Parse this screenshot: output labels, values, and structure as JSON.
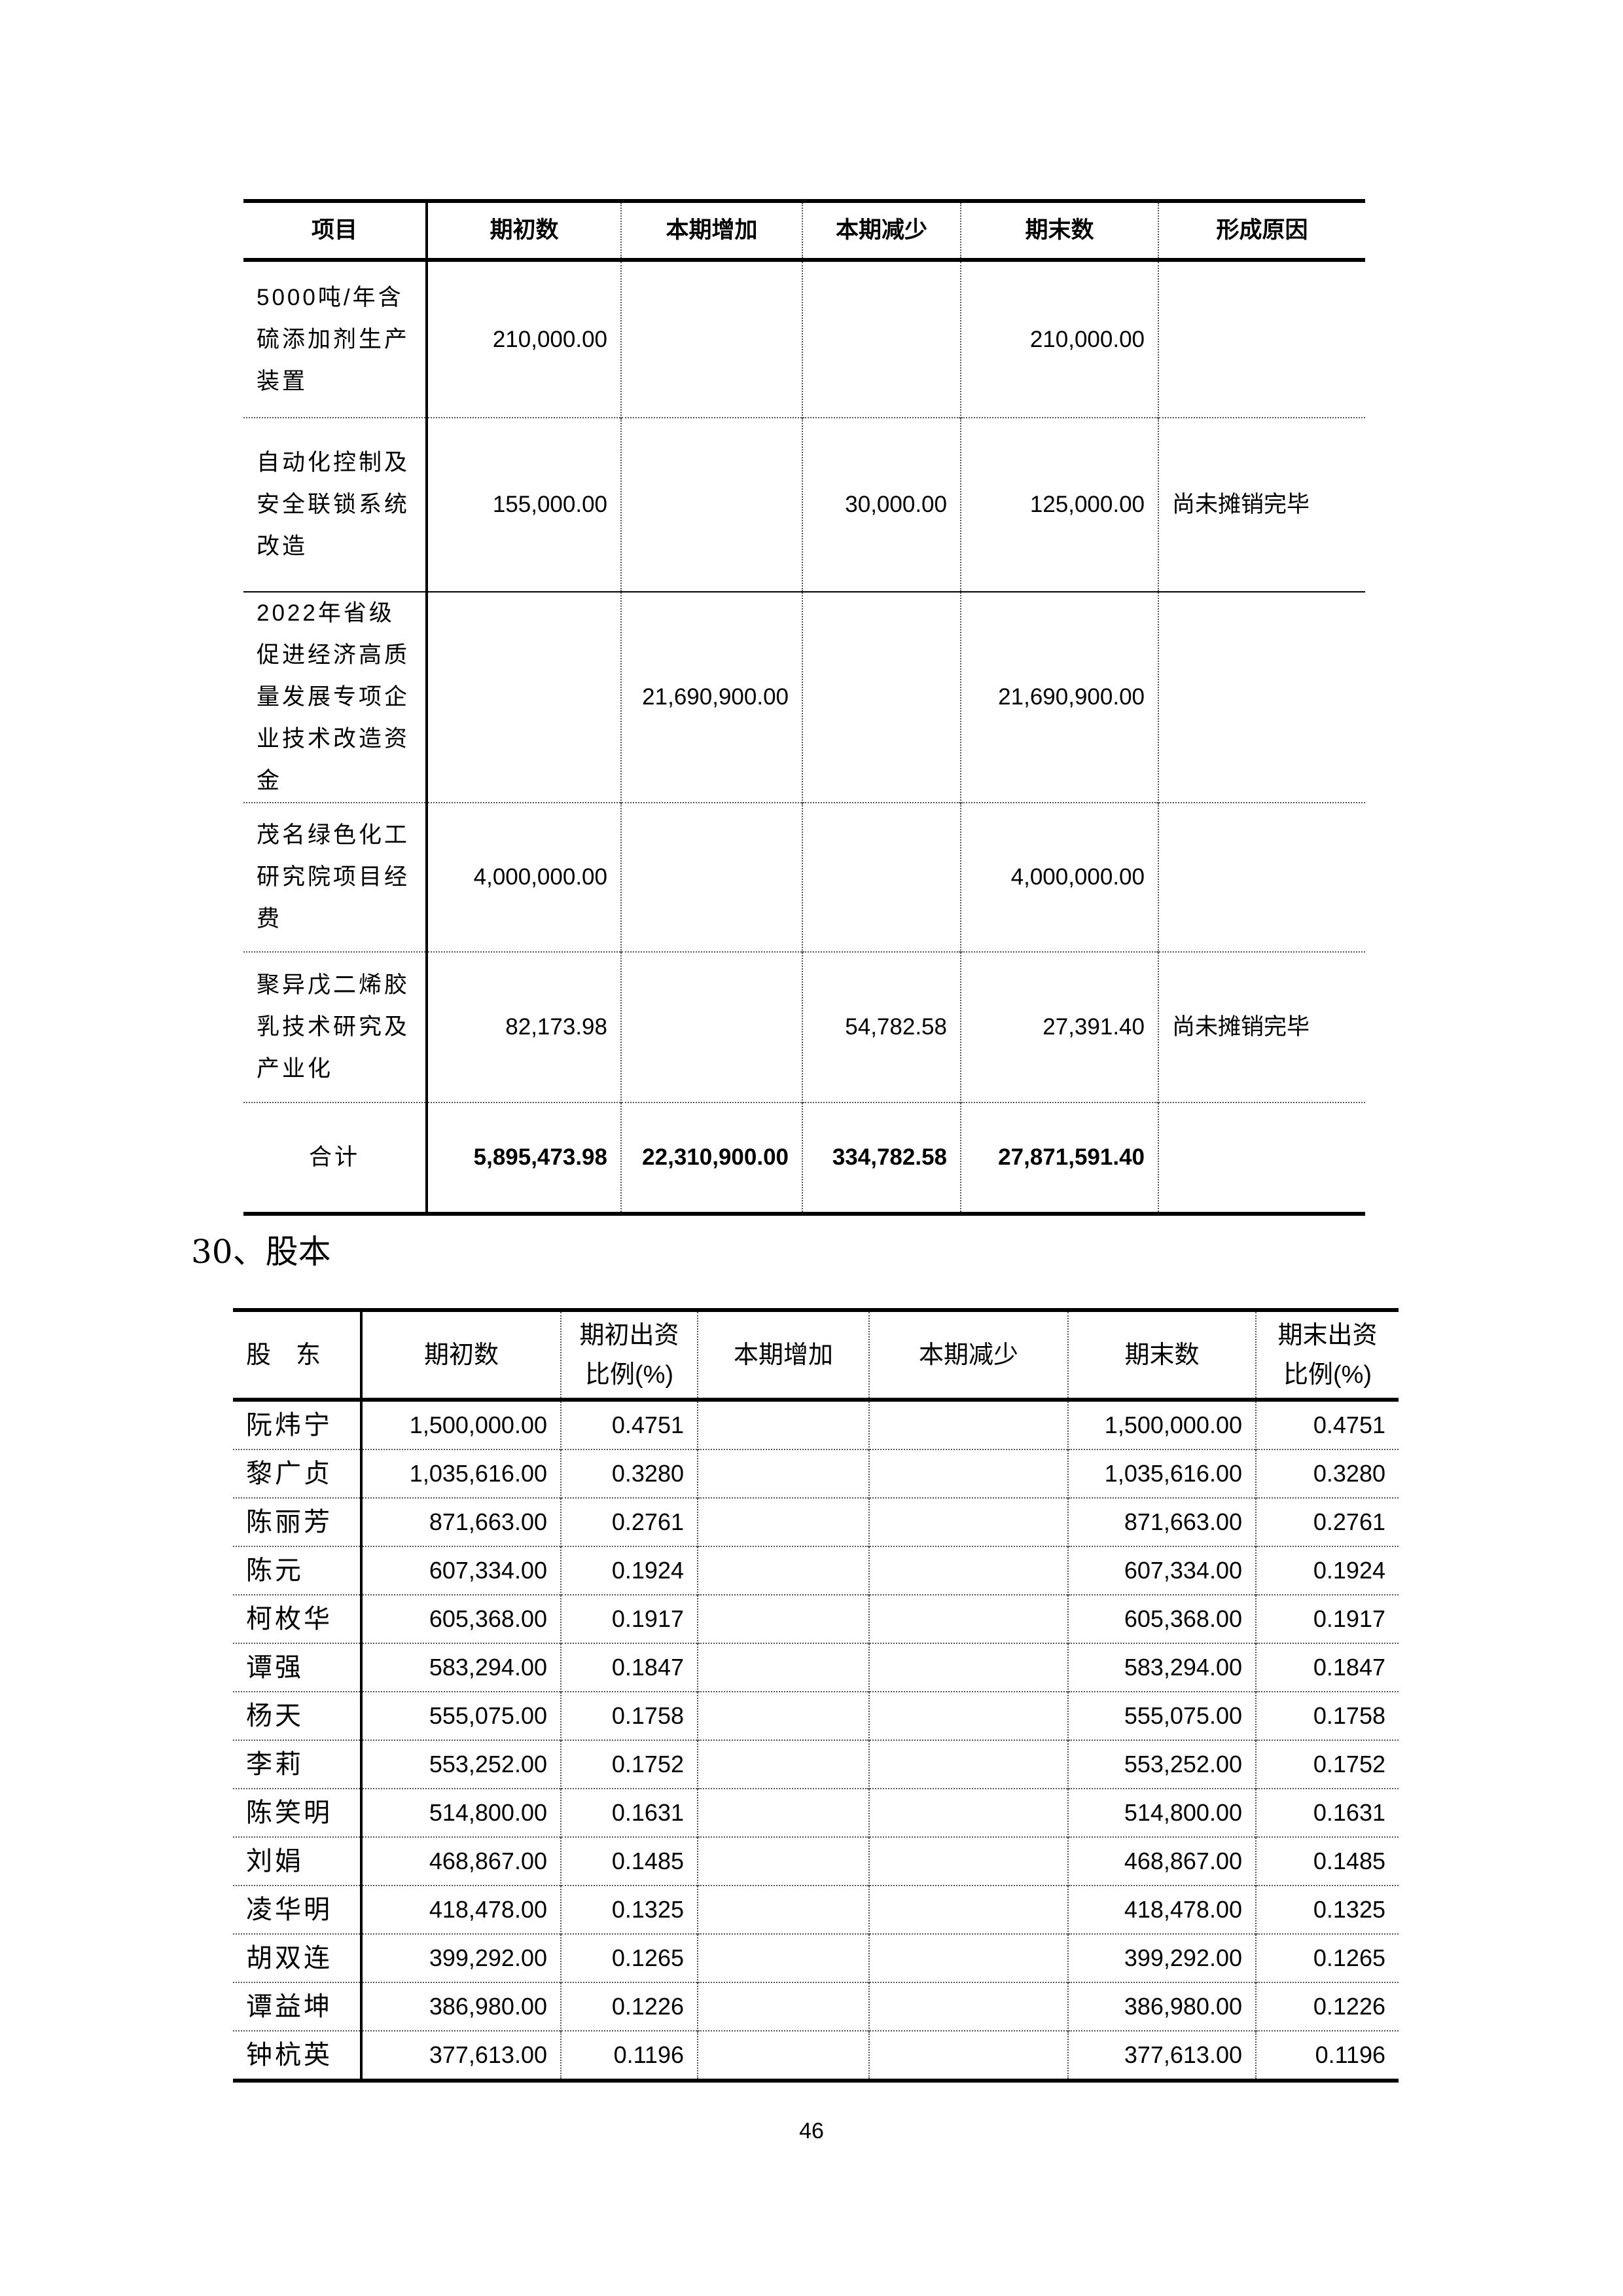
{
  "table1": {
    "headers": [
      "项目",
      "期初数",
      "本期增加",
      "本期减少",
      "期末数",
      "形成原因"
    ],
    "rows": [
      {
        "item": "5000吨/年含硫添加剂生产装置",
        "begin": "210,000.00",
        "increase": "",
        "decrease": "",
        "end": "210,000.00",
        "reason": ""
      },
      {
        "item": "自动化控制及安全联锁系统改造",
        "begin": "155,000.00",
        "increase": "",
        "decrease": "30,000.00",
        "end": "125,000.00",
        "reason": "尚未摊销完毕"
      },
      {
        "item": "2022年省级促进经济高质量发展专项企业技术改造资金",
        "begin": "",
        "increase": "21,690,900.00",
        "decrease": "",
        "end": "21,690,900.00",
        "reason": ""
      },
      {
        "item": "茂名绿色化工研究院项目经费",
        "begin": "4,000,000.00",
        "increase": "",
        "decrease": "",
        "end": "4,000,000.00",
        "reason": ""
      },
      {
        "item": "聚异戊二烯胶乳技术研究及产业化",
        "begin": "82,173.98",
        "increase": "",
        "decrease": "54,782.58",
        "end": "27,391.40",
        "reason": "尚未摊销完毕"
      }
    ],
    "total": {
      "item": "合计",
      "begin": "5,895,473.98",
      "increase": "22,310,900.00",
      "decrease": "334,782.58",
      "end": "27,871,591.40",
      "reason": ""
    }
  },
  "section_heading": "30、股本",
  "table2": {
    "headers": [
      "股　东",
      "期初数",
      "期初出资比例(%)",
      "本期增加",
      "本期减少",
      "期末数",
      "期末出资比例(%)"
    ],
    "rows": [
      {
        "name": "阮炜宁",
        "begin": "1,500,000.00",
        "begin_pct": "0.4751",
        "increase": "",
        "decrease": "",
        "end": "1,500,000.00",
        "end_pct": "0.4751"
      },
      {
        "name": "黎广贞",
        "begin": "1,035,616.00",
        "begin_pct": "0.3280",
        "increase": "",
        "decrease": "",
        "end": "1,035,616.00",
        "end_pct": "0.3280"
      },
      {
        "name": "陈丽芳",
        "begin": "871,663.00",
        "begin_pct": "0.2761",
        "increase": "",
        "decrease": "",
        "end": "871,663.00",
        "end_pct": "0.2761"
      },
      {
        "name": "陈元",
        "begin": "607,334.00",
        "begin_pct": "0.1924",
        "increase": "",
        "decrease": "",
        "end": "607,334.00",
        "end_pct": "0.1924"
      },
      {
        "name": "柯枚华",
        "begin": "605,368.00",
        "begin_pct": "0.1917",
        "increase": "",
        "decrease": "",
        "end": "605,368.00",
        "end_pct": "0.1917"
      },
      {
        "name": "谭强",
        "begin": "583,294.00",
        "begin_pct": "0.1847",
        "increase": "",
        "decrease": "",
        "end": "583,294.00",
        "end_pct": "0.1847"
      },
      {
        "name": "杨天",
        "begin": "555,075.00",
        "begin_pct": "0.1758",
        "increase": "",
        "decrease": "",
        "end": "555,075.00",
        "end_pct": "0.1758"
      },
      {
        "name": "李莉",
        "begin": "553,252.00",
        "begin_pct": "0.1752",
        "increase": "",
        "decrease": "",
        "end": "553,252.00",
        "end_pct": "0.1752"
      },
      {
        "name": "陈笑明",
        "begin": "514,800.00",
        "begin_pct": "0.1631",
        "increase": "",
        "decrease": "",
        "end": "514,800.00",
        "end_pct": "0.1631"
      },
      {
        "name": "刘娟",
        "begin": "468,867.00",
        "begin_pct": "0.1485",
        "increase": "",
        "decrease": "",
        "end": "468,867.00",
        "end_pct": "0.1485"
      },
      {
        "name": "凌华明",
        "begin": "418,478.00",
        "begin_pct": "0.1325",
        "increase": "",
        "decrease": "",
        "end": "418,478.00",
        "end_pct": "0.1325"
      },
      {
        "name": "胡双连",
        "begin": "399,292.00",
        "begin_pct": "0.1265",
        "increase": "",
        "decrease": "",
        "end": "399,292.00",
        "end_pct": "0.1265"
      },
      {
        "name": "谭益坤",
        "begin": "386,980.00",
        "begin_pct": "0.1226",
        "increase": "",
        "decrease": "",
        "end": "386,980.00",
        "end_pct": "0.1226"
      },
      {
        "name": "钟杭英",
        "begin": "377,613.00",
        "begin_pct": "0.1196",
        "increase": "",
        "decrease": "",
        "end": "377,613.00",
        "end_pct": "0.1196"
      }
    ]
  },
  "page_number": "46"
}
